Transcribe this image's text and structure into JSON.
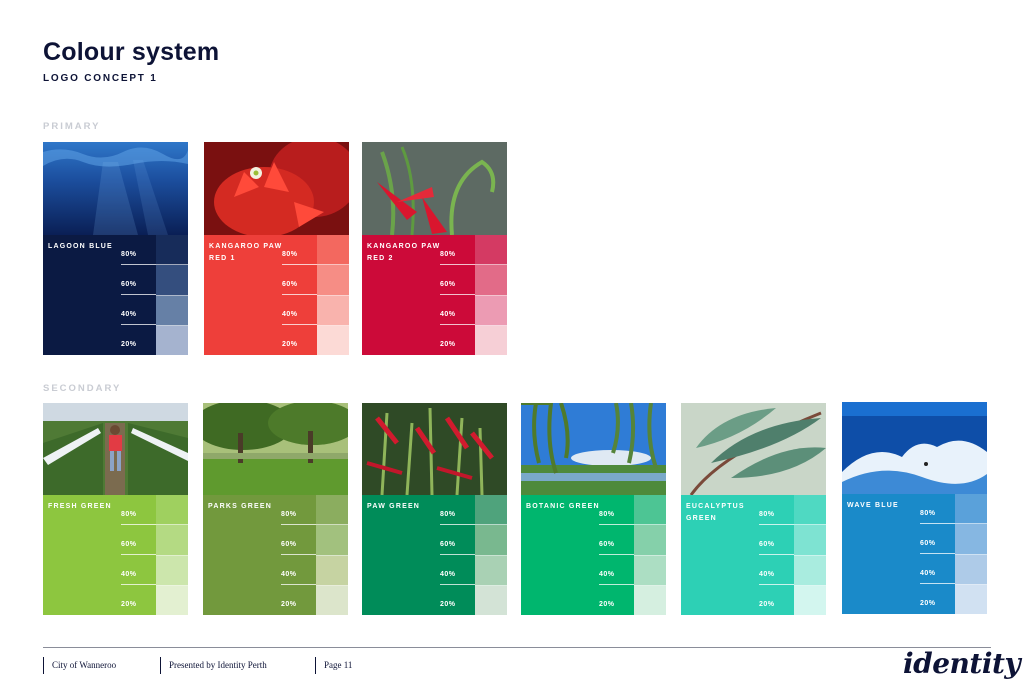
{
  "header": {
    "title": "Colour system",
    "subtitle": "LOGO CONCEPT 1"
  },
  "sections": {
    "primary": "PRIMARY",
    "secondary": "SECONDARY"
  },
  "percent_labels": [
    "80%",
    "60%",
    "40%",
    "20%"
  ],
  "primary": [
    {
      "name": "LAGOON BLUE",
      "color": "#0b1a43",
      "tints": [
        "#172c5a",
        "#344e7e",
        "#6680a6",
        "#a5b3cf"
      ],
      "image_icon": "underwater-photo"
    },
    {
      "name": "KANGAROO PAW RED 1",
      "color": "#ee3f3a",
      "tints": [
        "#f3685f",
        "#f68d85",
        "#f9b3ad",
        "#fcdad6"
      ],
      "image_icon": "red-kangaroo-paw-flower-photo"
    },
    {
      "name": "KANGAROO PAW RED 2",
      "color": "#cc0a39",
      "tints": [
        "#d43a63",
        "#e26b88",
        "#ec9bb3",
        "#f6cfd6"
      ],
      "image_icon": "kangaroo-paw-stems-photo"
    }
  ],
  "secondary": [
    {
      "name": "FRESH GREEN",
      "color": "#8dc63f",
      "tints": [
        "#9fd05f",
        "#b4da83",
        "#cce6ac",
        "#e3f0d1"
      ],
      "image_icon": "child-in-strawberry-field-photo"
    },
    {
      "name": "PARKS GREEN",
      "color": "#72993d",
      "tints": [
        "#8bad5f",
        "#a2c17e",
        "#c6d3a2",
        "#dce5cb"
      ],
      "image_icon": "park-trees-photo"
    },
    {
      "name": "PAW GREEN",
      "color": "#008c59",
      "tints": [
        "#4fa37c",
        "#79b88f",
        "#a9d1b4",
        "#d3e3d6"
      ],
      "image_icon": "green-kangaroo-paw-plants-photo"
    },
    {
      "name": "BOTANIC GREEN",
      "color": "#00b66e",
      "tints": [
        "#4dc594",
        "#85d0aa",
        "#acdec3",
        "#d5efe0"
      ],
      "image_icon": "willow-lake-photo"
    },
    {
      "name": "EUCALYPTUS GREEN",
      "color": "#2dd0b5",
      "tints": [
        "#4fd9c2",
        "#7ee3d2",
        "#a9ecdf",
        "#d3f6ef"
      ],
      "image_icon": "eucalyptus-leaves-photo"
    },
    {
      "name": "WAVE BLUE",
      "color": "#1a8ac9",
      "tints": [
        "#5aa1da",
        "#86b7e2",
        "#aecbe8",
        "#d1e1f2"
      ],
      "image_icon": "surfer-wave-photo"
    }
  ],
  "footer": {
    "client": "City of Wanneroo",
    "presenter": "Presented by Identity Perth",
    "page": "Page 11",
    "brand": "identity"
  }
}
